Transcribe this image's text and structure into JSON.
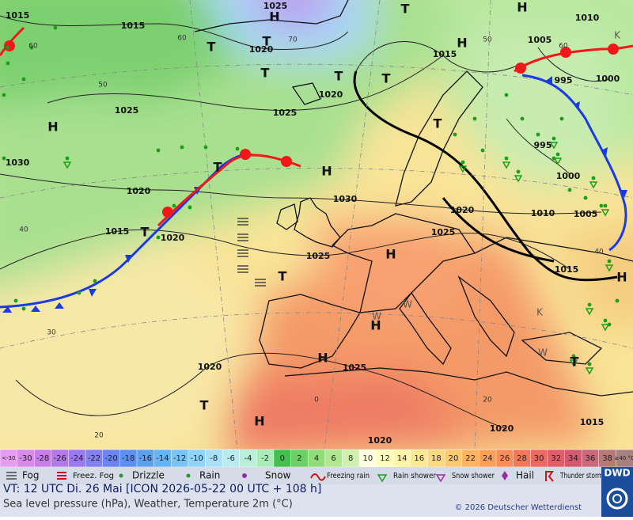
{
  "map": {
    "pressure_labels": [
      "1015",
      "1025",
      "1010",
      "1015",
      "1020",
      "1005",
      "1015",
      "995",
      "1000",
      "1020",
      "1025",
      "1025",
      "995",
      "1030",
      "1000",
      "1020",
      "1030",
      "1020",
      "1010",
      "1005",
      "1015",
      "1020",
      "1025",
      "1025",
      "1015",
      "1020",
      "1025",
      "1020",
      "1015",
      "1020"
    ],
    "temperature_labels": [
      "60",
      "60",
      "70",
      "50",
      "40",
      "30",
      "20",
      "40",
      "60",
      "50",
      "0",
      "20"
    ],
    "highs": [
      "H",
      "H",
      "H",
      "H",
      "H",
      "H",
      "H",
      "H",
      "H",
      "H"
    ],
    "lows": [
      "T",
      "T",
      "T",
      "T",
      "T",
      "T",
      "T",
      "T",
      "T",
      "T",
      "T",
      "T"
    ],
    "other_symbols": [
      "K",
      "K",
      "W",
      "W",
      "W"
    ]
  },
  "color_scale": {
    "labels": [
      "<-30",
      "-30",
      "-28",
      "-26",
      "-24",
      "-22",
      "-20",
      "-18",
      "-16",
      "-14",
      "-12",
      "-10",
      "-8",
      "-6",
      "-4",
      "-2",
      "0",
      "2",
      "4",
      "6",
      "8",
      "10",
      "12",
      "14",
      "16",
      "18",
      "20",
      "22",
      "24",
      "26",
      "28",
      "30",
      "32",
      "34",
      "36",
      "38",
      "≥40 °C"
    ],
    "colors": [
      "#e69cf0",
      "#d88ae8",
      "#c87ee8",
      "#b478e8",
      "#9c78f0",
      "#8480f0",
      "#6c84f0",
      "#5c90f0",
      "#5ca0f0",
      "#64b4f8",
      "#78c4f8",
      "#90d4f8",
      "#a8e0f8",
      "#b8ecf0",
      "#b8f0d8",
      "#a8ecb8",
      "#44c050",
      "#6cd064",
      "#90dc78",
      "#b0e890",
      "#d0f0b0",
      "#ffffe0",
      "#fffcc0",
      "#fff4a8",
      "#fce890",
      "#fcd880",
      "#fcc870",
      "#fcb460",
      "#fca058",
      "#fc8c58",
      "#f47858",
      "#ec6860",
      "#e05c68",
      "#d45870",
      "#c86878",
      "#b87878",
      "#a88080"
    ]
  },
  "weather_legend": [
    "Fog",
    "Freez. Fog",
    "Drizzle",
    "Rain",
    "Snow",
    "Freezing rain",
    "Rain shower",
    "Snow shower",
    "Hail",
    "Thunder storm"
  ],
  "footer": {
    "valid_time": "VT: 12 UTC Di.  26 Mai [ICON 2026-05-22  00 UTC + 108 h]",
    "description": "Sea level pressure (hPa), Weather, Temperature 2m (°C)",
    "copyright": "© 2026 Deutscher Wetterdienst",
    "logo": "DWD"
  }
}
